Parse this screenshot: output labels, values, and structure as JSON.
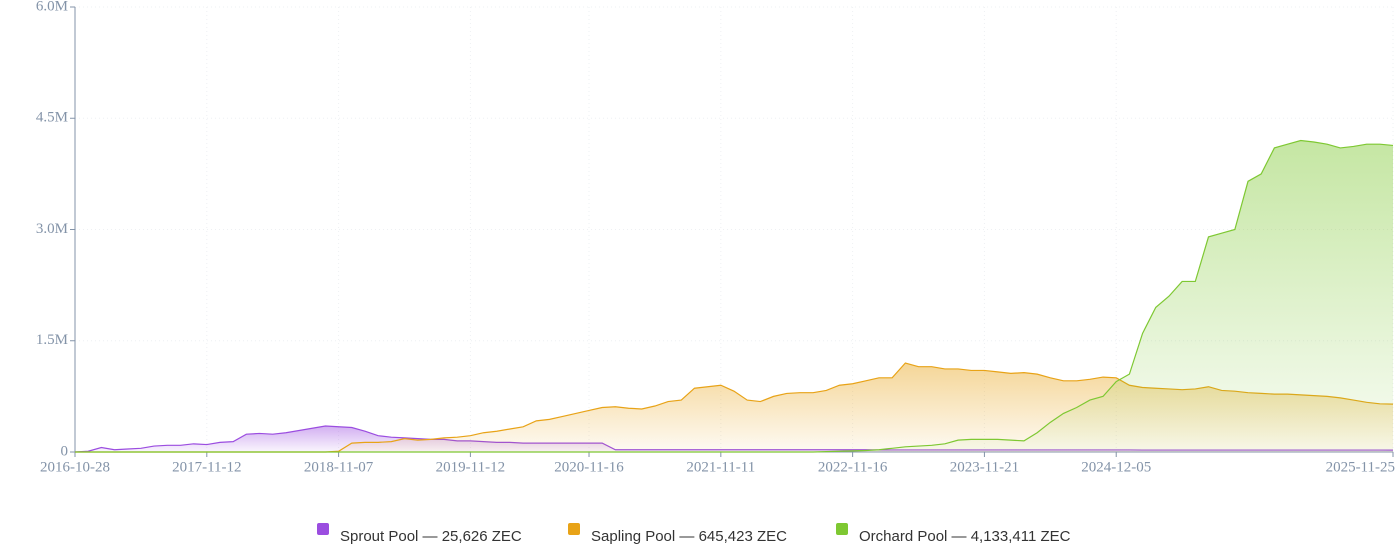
{
  "chart_data": {
    "type": "area",
    "categories": [
      "2016-10-28",
      null,
      null,
      null,
      null,
      null,
      null,
      null,
      null,
      null,
      "2017-11-12",
      null,
      null,
      null,
      null,
      null,
      null,
      null,
      null,
      null,
      "2018-11-07",
      null,
      null,
      null,
      null,
      null,
      null,
      null,
      null,
      null,
      "2019-11-12",
      null,
      null,
      null,
      null,
      null,
      null,
      null,
      null,
      "2020-11-16",
      null,
      null,
      null,
      null,
      null,
      null,
      null,
      null,
      null,
      "2021-11-11",
      null,
      null,
      null,
      null,
      null,
      null,
      null,
      null,
      null,
      "2022-11-16",
      null,
      null,
      null,
      null,
      null,
      null,
      null,
      null,
      null,
      "2023-11-21",
      null,
      null,
      null,
      null,
      null,
      null,
      null,
      null,
      null,
      "2024-12-05",
      null,
      null,
      null,
      null,
      null,
      null,
      null,
      null,
      null,
      null,
      null,
      null,
      null,
      null,
      null,
      null,
      null,
      null,
      null,
      null,
      "2025-11-25"
    ],
    "series": [
      {
        "name": "Sprout Pool — 25,626 ZEC",
        "color": "#9b4de0",
        "values": [
          0,
          10000,
          60000,
          30000,
          40000,
          50000,
          80000,
          90000,
          90000,
          110000,
          100000,
          130000,
          140000,
          240000,
          250000,
          240000,
          260000,
          290000,
          320000,
          350000,
          340000,
          330000,
          280000,
          220000,
          200000,
          190000,
          180000,
          170000,
          170000,
          150000,
          150000,
          140000,
          130000,
          130000,
          120000,
          120000,
          120000,
          120000,
          120000,
          120000,
          120000,
          30000,
          30000,
          30000,
          30000,
          30000,
          30000,
          30000,
          30000,
          30000,
          30000,
          30000,
          30000,
          30000,
          30000,
          30000,
          30000,
          30000,
          30000,
          30000,
          30000,
          28000,
          28000,
          28000,
          28000,
          28000,
          28000,
          28000,
          28000,
          28000,
          28000,
          28000,
          28000,
          28000,
          28000,
          28000,
          28000,
          28000,
          28000,
          28000,
          28000,
          26000,
          26000,
          26000,
          26000,
          26000,
          26000,
          26000,
          26000,
          26000,
          26000,
          26000,
          26000,
          26000,
          26000,
          26000,
          26000,
          26000,
          26000,
          26000,
          25626
        ]
      },
      {
        "name": "Sapling Pool — 645,423 ZEC",
        "color": "#e8a317",
        "values": [
          0,
          0,
          0,
          0,
          0,
          0,
          0,
          0,
          0,
          0,
          0,
          0,
          0,
          0,
          0,
          0,
          0,
          0,
          0,
          0,
          10000,
          120000,
          130000,
          130000,
          140000,
          180000,
          160000,
          170000,
          190000,
          200000,
          220000,
          260000,
          280000,
          310000,
          340000,
          420000,
          440000,
          480000,
          520000,
          560000,
          600000,
          610000,
          590000,
          580000,
          620000,
          680000,
          700000,
          860000,
          880000,
          900000,
          820000,
          700000,
          680000,
          750000,
          790000,
          800000,
          800000,
          830000,
          900000,
          920000,
          960000,
          1000000,
          1000000,
          1200000,
          1150000,
          1150000,
          1120000,
          1120000,
          1100000,
          1100000,
          1080000,
          1060000,
          1070000,
          1050000,
          1000000,
          960000,
          960000,
          980000,
          1010000,
          1000000,
          900000,
          870000,
          860000,
          850000,
          840000,
          850000,
          880000,
          830000,
          820000,
          800000,
          790000,
          780000,
          780000,
          770000,
          760000,
          750000,
          730000,
          700000,
          670000,
          650000,
          645423
        ]
      },
      {
        "name": "Orchard Pool — 4,133,411 ZEC",
        "color": "#7ec832",
        "values": [
          0,
          0,
          0,
          0,
          0,
          0,
          0,
          0,
          0,
          0,
          0,
          0,
          0,
          0,
          0,
          0,
          0,
          0,
          0,
          0,
          0,
          0,
          0,
          0,
          0,
          0,
          0,
          0,
          0,
          0,
          0,
          0,
          0,
          0,
          0,
          0,
          0,
          0,
          0,
          0,
          0,
          0,
          0,
          0,
          0,
          0,
          0,
          0,
          0,
          0,
          0,
          0,
          0,
          0,
          0,
          0,
          0,
          5000,
          10000,
          15000,
          20000,
          30000,
          50000,
          70000,
          80000,
          90000,
          110000,
          160000,
          170000,
          170000,
          170000,
          160000,
          150000,
          260000,
          400000,
          520000,
          600000,
          700000,
          750000,
          950000,
          1050000,
          1600000,
          1950000,
          2100000,
          2300000,
          2300000,
          2900000,
          2950000,
          3000000,
          3650000,
          3750000,
          4100000,
          4150000,
          4200000,
          4180000,
          4150000,
          4100000,
          4120000,
          4150000,
          4150000,
          4133411
        ]
      }
    ],
    "ylim": [
      0,
      6000000
    ],
    "yticks": [
      {
        "value": 0,
        "label": "0"
      },
      {
        "value": 1500000,
        "label": "1.5M"
      },
      {
        "value": 3000000,
        "label": "3.0M"
      },
      {
        "value": 4500000,
        "label": "4.5M"
      },
      {
        "value": 6000000,
        "label": "6.0M"
      }
    ],
    "grid": true
  }
}
